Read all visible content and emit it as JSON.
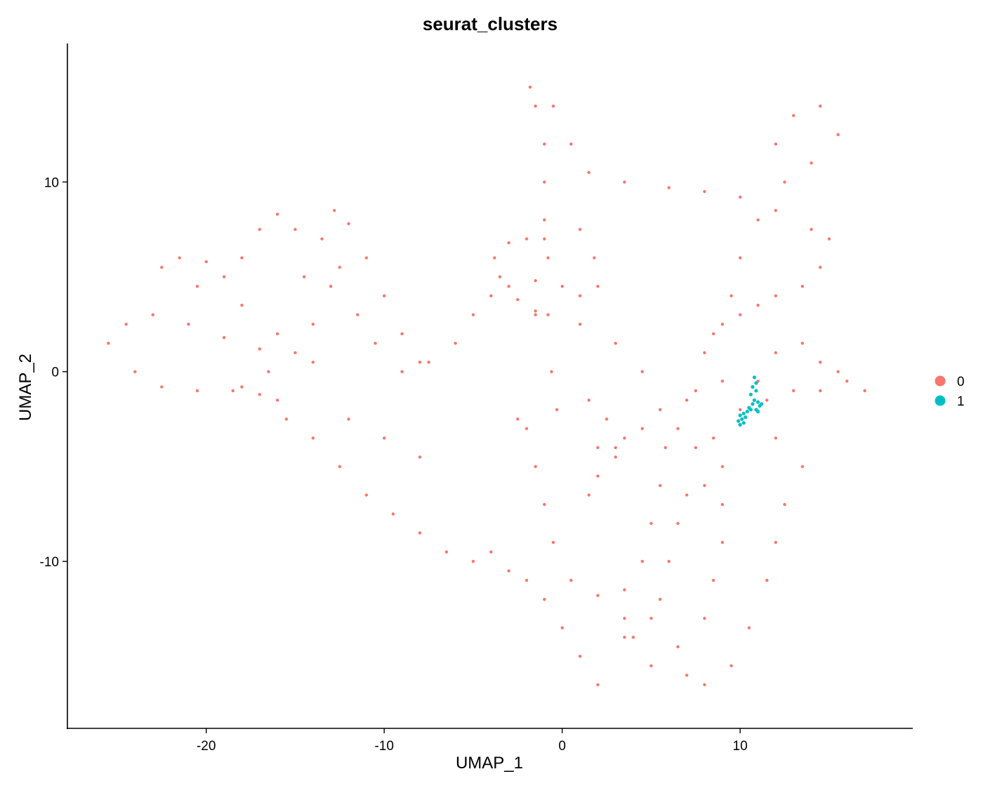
{
  "chart_data": {
    "type": "scatter",
    "title": "seurat_clusters",
    "xlabel": "UMAP_1",
    "ylabel": "UMAP_2",
    "xlim": [
      -27.8,
      19.7
    ],
    "ylim": [
      -18.8,
      17.3
    ],
    "xticks": [
      -20,
      -10,
      0,
      10
    ],
    "xtick_labels": [
      "-20",
      "-10",
      "0",
      "10"
    ],
    "yticks": [
      10,
      0,
      -10
    ],
    "ytick_labels": [
      "10",
      "0",
      "-10"
    ],
    "grid": false,
    "legend_position": "right",
    "series": [
      {
        "name": "0",
        "color": "#F8766D",
        "note_structure": "dense point cloud (~ several thousand cells) tracing loops and arcs",
        "points": [
          [
            -25.5,
            1.5
          ],
          [
            -24.5,
            2.5
          ],
          [
            -23.0,
            3.0
          ],
          [
            -21.0,
            2.5
          ],
          [
            -19.0,
            1.8
          ],
          [
            -17.0,
            1.2
          ],
          [
            -24.0,
            0.0
          ],
          [
            -22.5,
            -0.8
          ],
          [
            -20.5,
            -1.0
          ],
          [
            -18.5,
            -1.0
          ],
          [
            -17.0,
            -1.2
          ],
          [
            -16.0,
            -1.5
          ],
          [
            -22.5,
            5.5
          ],
          [
            -21.5,
            6.0
          ],
          [
            -20.0,
            5.8
          ],
          [
            -19.0,
            5.0
          ],
          [
            -18.0,
            6.0
          ],
          [
            -17.0,
            7.5
          ],
          [
            -16.0,
            8.3
          ],
          [
            -15.0,
            7.5
          ],
          [
            -14.5,
            5.0
          ],
          [
            -14.0,
            2.5
          ],
          [
            -15.0,
            1.0
          ],
          [
            -16.5,
            0.0
          ],
          [
            -18.0,
            -0.8
          ],
          [
            -20.5,
            4.5
          ],
          [
            -18.0,
            3.5
          ],
          [
            -16.0,
            2.0
          ],
          [
            -14.0,
            0.5
          ],
          [
            -13.5,
            7.0
          ],
          [
            -12.8,
            8.5
          ],
          [
            -12.0,
            7.8
          ],
          [
            -11.0,
            6.0
          ],
          [
            -10.0,
            4.0
          ],
          [
            -9.0,
            2.0
          ],
          [
            -8.0,
            0.5
          ],
          [
            -11.5,
            3.0
          ],
          [
            -10.5,
            1.5
          ],
          [
            -9.0,
            0.0
          ],
          [
            -12.5,
            5.5
          ],
          [
            -13.0,
            4.5
          ],
          [
            -7.5,
            0.5
          ],
          [
            -6.0,
            1.5
          ],
          [
            -5.0,
            3.0
          ],
          [
            -4.0,
            4.0
          ],
          [
            -3.0,
            4.5
          ],
          [
            -1.5,
            4.8
          ],
          [
            0.0,
            4.5
          ],
          [
            1.0,
            4.0
          ],
          [
            2.0,
            4.5
          ],
          [
            1.8,
            6.0
          ],
          [
            1.0,
            7.5
          ],
          [
            -1.0,
            7.0
          ],
          [
            -2.0,
            7.0
          ],
          [
            -3.0,
            6.8
          ],
          [
            -3.8,
            6.0
          ],
          [
            -3.5,
            5.0
          ],
          [
            -2.5,
            3.8
          ],
          [
            -1.5,
            3.2
          ],
          [
            -1.8,
            15.0
          ],
          [
            -1.5,
            14.0
          ],
          [
            -1.0,
            12.0
          ],
          [
            -1.0,
            10.0
          ],
          [
            -1.0,
            8.0
          ],
          [
            -0.8,
            6.0
          ],
          [
            -0.8,
            3.0
          ],
          [
            -0.6,
            0.0
          ],
          [
            -0.3,
            -2.0
          ],
          [
            -0.5,
            14.0
          ],
          [
            0.5,
            12.0
          ],
          [
            1.5,
            10.5
          ],
          [
            3.5,
            10.0
          ],
          [
            6.0,
            9.7
          ],
          [
            8.0,
            9.5
          ],
          [
            10.0,
            9.2
          ],
          [
            12.0,
            8.5
          ],
          [
            14.0,
            7.5
          ],
          [
            15.0,
            7.0
          ],
          [
            14.5,
            5.5
          ],
          [
            13.5,
            4.5
          ],
          [
            12.0,
            4.0
          ],
          [
            11.0,
            3.5
          ],
          [
            10.0,
            3.0
          ],
          [
            9.0,
            2.5
          ],
          [
            8.0,
            1.0
          ],
          [
            7.5,
            -1.0
          ],
          [
            12.0,
            12.0
          ],
          [
            13.0,
            13.5
          ],
          [
            14.5,
            14.0
          ],
          [
            15.5,
            12.5
          ],
          [
            14.0,
            11.0
          ],
          [
            12.5,
            10.0
          ],
          [
            11.0,
            8.0
          ],
          [
            10.0,
            6.0
          ],
          [
            9.5,
            4.0
          ],
          [
            8.5,
            2.0
          ],
          [
            -1.5,
            3.0
          ],
          [
            1.0,
            2.5
          ],
          [
            3.0,
            1.5
          ],
          [
            4.5,
            0.0
          ],
          [
            5.5,
            -2.0
          ],
          [
            5.8,
            -4.0
          ],
          [
            5.5,
            -6.0
          ],
          [
            5.0,
            -8.0
          ],
          [
            4.5,
            -10.0
          ],
          [
            3.5,
            -11.5
          ],
          [
            2.0,
            -11.8
          ],
          [
            0.5,
            -11.0
          ],
          [
            -0.5,
            -9.0
          ],
          [
            -1.0,
            -7.0
          ],
          [
            -1.5,
            -5.0
          ],
          [
            -2.0,
            -3.0
          ],
          [
            -2.5,
            -2.5
          ],
          [
            1.5,
            -1.5
          ],
          [
            2.5,
            -2.5
          ],
          [
            3.5,
            -3.5
          ],
          [
            4.5,
            -3.0
          ],
          [
            3.0,
            -4.5
          ],
          [
            2.0,
            -5.5
          ],
          [
            1.5,
            -6.5
          ],
          [
            2.0,
            -4.0
          ],
          [
            3.0,
            -4.0
          ],
          [
            -15.5,
            -2.5
          ],
          [
            -14.0,
            -3.5
          ],
          [
            -12.5,
            -5.0
          ],
          [
            -11.0,
            -6.5
          ],
          [
            -9.5,
            -7.5
          ],
          [
            -8.0,
            -8.5
          ],
          [
            -6.5,
            -9.5
          ],
          [
            -5.0,
            -10.0
          ],
          [
            -4.0,
            -9.5
          ],
          [
            -3.0,
            -10.5
          ],
          [
            -12.0,
            -2.5
          ],
          [
            -10.0,
            -3.5
          ],
          [
            -8.0,
            -4.5
          ],
          [
            -2.0,
            -11.0
          ],
          [
            -1.0,
            -12.0
          ],
          [
            0.0,
            -13.5
          ],
          [
            1.0,
            -15.0
          ],
          [
            2.0,
            -16.5
          ],
          [
            3.5,
            -14.0
          ],
          [
            5.0,
            -13.0
          ],
          [
            6.5,
            -3.0
          ],
          [
            7.5,
            -4.0
          ],
          [
            8.5,
            -3.5
          ],
          [
            9.0,
            -5.0
          ],
          [
            8.0,
            -6.0
          ],
          [
            7.0,
            -6.5
          ],
          [
            6.5,
            -8.0
          ],
          [
            6.0,
            -10.0
          ],
          [
            5.5,
            -12.0
          ],
          [
            9.0,
            -7.0
          ],
          [
            9.0,
            -9.0
          ],
          [
            8.5,
            -11.0
          ],
          [
            8.0,
            -13.0
          ],
          [
            6.5,
            -14.5
          ],
          [
            5.0,
            -15.5
          ],
          [
            4.0,
            -14.0
          ],
          [
            3.5,
            -13.0
          ],
          [
            10.0,
            -2.0
          ],
          [
            11.5,
            -1.5
          ],
          [
            13.0,
            -1.0
          ],
          [
            14.5,
            -1.0
          ],
          [
            16.0,
            -0.5
          ],
          [
            17.0,
            -1.0
          ],
          [
            12.0,
            -3.5
          ],
          [
            13.5,
            -5.0
          ],
          [
            12.5,
            -7.0
          ],
          [
            12.0,
            -9.0
          ],
          [
            11.5,
            -11.0
          ],
          [
            10.5,
            -13.5
          ],
          [
            9.5,
            -15.5
          ],
          [
            8.0,
            -16.5
          ],
          [
            7.0,
            -16.0
          ],
          [
            12.0,
            1.0
          ],
          [
            13.5,
            1.5
          ],
          [
            14.5,
            0.5
          ],
          [
            15.5,
            0.0
          ],
          [
            11.0,
            -0.5
          ],
          [
            9.0,
            -0.5
          ],
          [
            7.0,
            -1.5
          ]
        ]
      },
      {
        "name": "1",
        "color": "#00BFC4",
        "points": [
          [
            10.8,
            -0.3
          ],
          [
            10.9,
            -0.6
          ],
          [
            10.7,
            -0.8
          ],
          [
            10.9,
            -1.0
          ],
          [
            10.6,
            -1.2
          ],
          [
            10.8,
            -1.5
          ],
          [
            11.0,
            -1.6
          ],
          [
            11.1,
            -1.8
          ],
          [
            10.9,
            -2.0
          ],
          [
            10.6,
            -2.0
          ],
          [
            10.4,
            -2.1
          ],
          [
            10.2,
            -2.2
          ],
          [
            10.0,
            -2.3
          ],
          [
            10.1,
            -2.5
          ],
          [
            9.9,
            -2.6
          ],
          [
            10.2,
            -2.7
          ],
          [
            10.0,
            -2.8
          ],
          [
            10.3,
            -2.4
          ],
          [
            10.5,
            -1.9
          ],
          [
            10.7,
            -1.7
          ],
          [
            11.2,
            -1.7
          ],
          [
            11.0,
            -2.1
          ]
        ]
      }
    ]
  }
}
